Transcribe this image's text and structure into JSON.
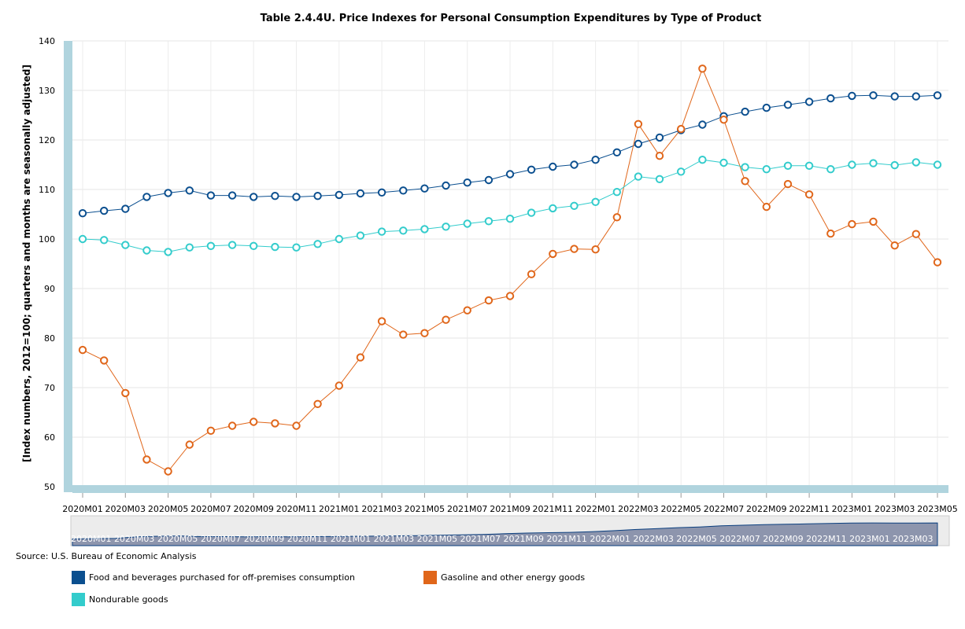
{
  "source": "Source: U.S. Bureau of Economic Analysis",
  "chart_data": {
    "type": "line",
    "title": "Table 2.4.4U. Price Indexes for Personal Consumption Expenditures by Type of Product",
    "xlabel": "",
    "ylabel": "[Index numbers, 2012=100; quarters and months are seasonally adjusted]",
    "ylim": [
      50,
      140
    ],
    "yticks": [
      50,
      60,
      70,
      80,
      90,
      100,
      110,
      120,
      130,
      140
    ],
    "grid": true,
    "legend_position": "bottom",
    "x": [
      "2020M01",
      "2020M02",
      "2020M03",
      "2020M04",
      "2020M05",
      "2020M06",
      "2020M07",
      "2020M08",
      "2020M09",
      "2020M10",
      "2020M11",
      "2020M12",
      "2021M01",
      "2021M02",
      "2021M03",
      "2021M04",
      "2021M05",
      "2021M06",
      "2021M07",
      "2021M08",
      "2021M09",
      "2021M10",
      "2021M11",
      "2021M12",
      "2022M01",
      "2022M02",
      "2022M03",
      "2022M04",
      "2022M05",
      "2022M06",
      "2022M07",
      "2022M08",
      "2022M09",
      "2022M10",
      "2022M11",
      "2022M12",
      "2023M01",
      "2023M02",
      "2023M03",
      "2023M04",
      "2023M05"
    ],
    "xtick_labels": [
      "2020M01",
      "2020M03",
      "2020M05",
      "2020M07",
      "2020M09",
      "2020M11",
      "2021M01",
      "2021M03",
      "2021M05",
      "2021M07",
      "2021M09",
      "2021M11",
      "2022M01",
      "2022M03",
      "2022M05",
      "2022M07",
      "2022M09",
      "2022M11",
      "2023M01",
      "2023M03",
      "2023M05"
    ],
    "navigator_labels": [
      "2020M01",
      "2020M03",
      "2020M05",
      "2020M07",
      "2020M09",
      "2020M11",
      "2021M01",
      "2021M03",
      "2021M05",
      "2021M07",
      "2021M09",
      "2021M11",
      "2022M01",
      "2022M03",
      "2022M05",
      "2022M07",
      "2022M09",
      "2022M11",
      "2023M01",
      "2023M03"
    ],
    "series": [
      {
        "name": "Food and beverages purchased for off-premises consumption",
        "color": "#0b4f8f",
        "values": [
          105.2,
          105.7,
          106.1,
          108.5,
          109.3,
          109.8,
          108.8,
          108.8,
          108.5,
          108.7,
          108.5,
          108.7,
          108.9,
          109.2,
          109.4,
          109.8,
          110.2,
          110.8,
          111.4,
          111.9,
          113.1,
          114.0,
          114.6,
          115.0,
          116.0,
          117.5,
          119.2,
          120.5,
          122.0,
          123.1,
          124.8,
          125.7,
          126.5,
          127.1,
          127.7,
          128.4,
          128.9,
          129.0,
          128.8,
          128.8,
          129.0
        ]
      },
      {
        "name": "Gasoline and other energy goods",
        "color": "#e0661a",
        "values": [
          77.6,
          75.5,
          68.9,
          55.5,
          53.1,
          58.5,
          61.3,
          62.3,
          63.1,
          62.8,
          62.3,
          66.7,
          70.4,
          76.1,
          83.4,
          80.7,
          81.0,
          83.7,
          85.6,
          87.6,
          88.5,
          92.9,
          97.0,
          98.0,
          97.9,
          104.4,
          123.2,
          116.8,
          122.2,
          134.4,
          124.1,
          111.7,
          106.5,
          111.1,
          109.0,
          101.1,
          103.0,
          103.5,
          98.7,
          101.0,
          95.3
        ]
      },
      {
        "name": "Nondurable goods",
        "color": "#33cccc",
        "values": [
          100.0,
          99.8,
          98.8,
          97.7,
          97.4,
          98.3,
          98.6,
          98.8,
          98.6,
          98.4,
          98.3,
          99.0,
          100.0,
          100.7,
          101.5,
          101.7,
          102.0,
          102.5,
          103.1,
          103.6,
          104.1,
          105.3,
          106.2,
          106.7,
          107.5,
          109.5,
          112.6,
          112.1,
          113.6,
          116.0,
          115.4,
          114.5,
          114.1,
          114.8,
          114.8,
          114.1,
          115.0,
          115.3,
          114.9,
          115.5,
          115.0
        ]
      }
    ]
  }
}
